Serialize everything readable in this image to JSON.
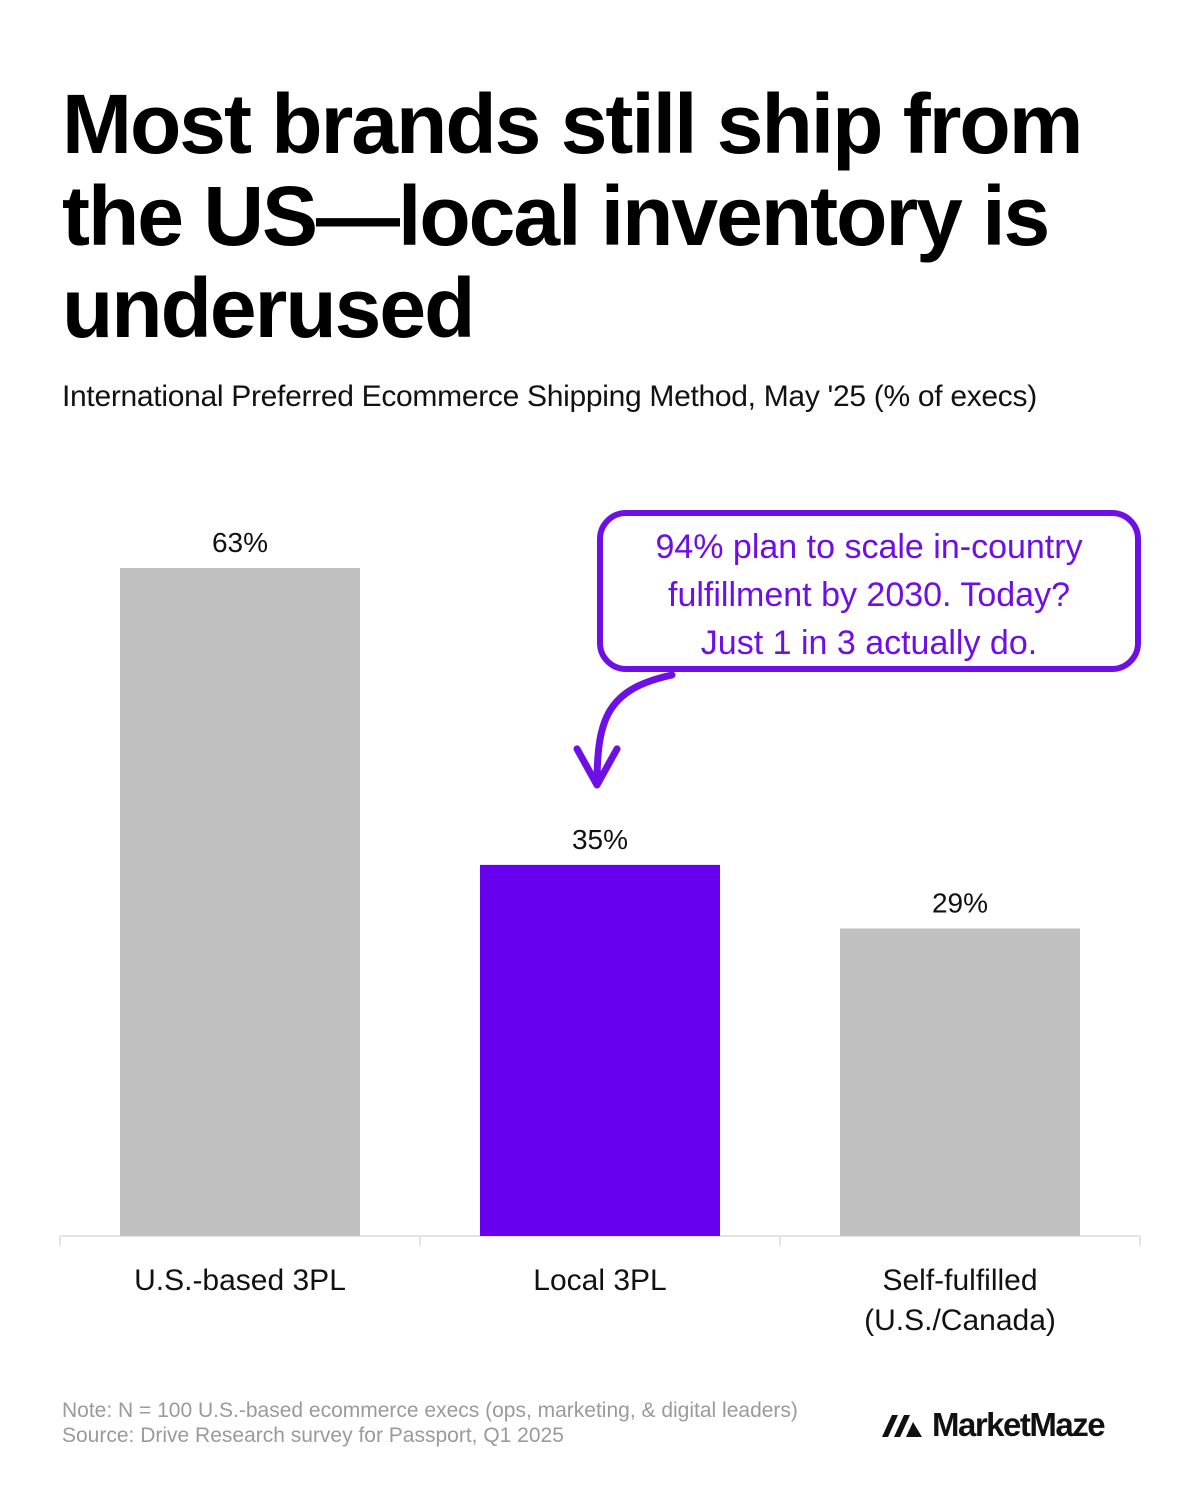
{
  "title": "Most brands still ship from the US—local inventory is underused",
  "subtitle": "International Preferred Ecommerce Shipping Method, May '25 (% of execs)",
  "chart_data": {
    "type": "bar",
    "categories": [
      "U.S.-based 3PL",
      "Local 3PL",
      "Self-fulfilled (U.S./Canada)"
    ],
    "category_lines": [
      [
        "U.S.-based 3PL"
      ],
      [
        "Local 3PL"
      ],
      [
        "Self-fulfilled",
        "(U.S./Canada)"
      ]
    ],
    "values": [
      63,
      35,
      29
    ],
    "value_labels": [
      "63%",
      "35%",
      "29%"
    ],
    "ylim": [
      0,
      63
    ],
    "highlight_index": 1,
    "colors": {
      "default": "#c0c0c0",
      "highlight": "#6600ee",
      "axis": "#e4e4e4"
    },
    "callout": {
      "lines": [
        "94% plan to scale in-country",
        "fulfillment by 2030. Today?",
        "Just 1 in 3 actually do."
      ],
      "color": "#6e0fe6"
    }
  },
  "footer": {
    "note": "Note: N = 100 U.S.-based ecommerce execs (ops, marketing, & digital leaders)",
    "source": "Source: Drive Research survey for Passport, Q1 2025"
  },
  "brand": {
    "name": "MarketMaze",
    "icon": "marketmaze-logo-icon"
  }
}
